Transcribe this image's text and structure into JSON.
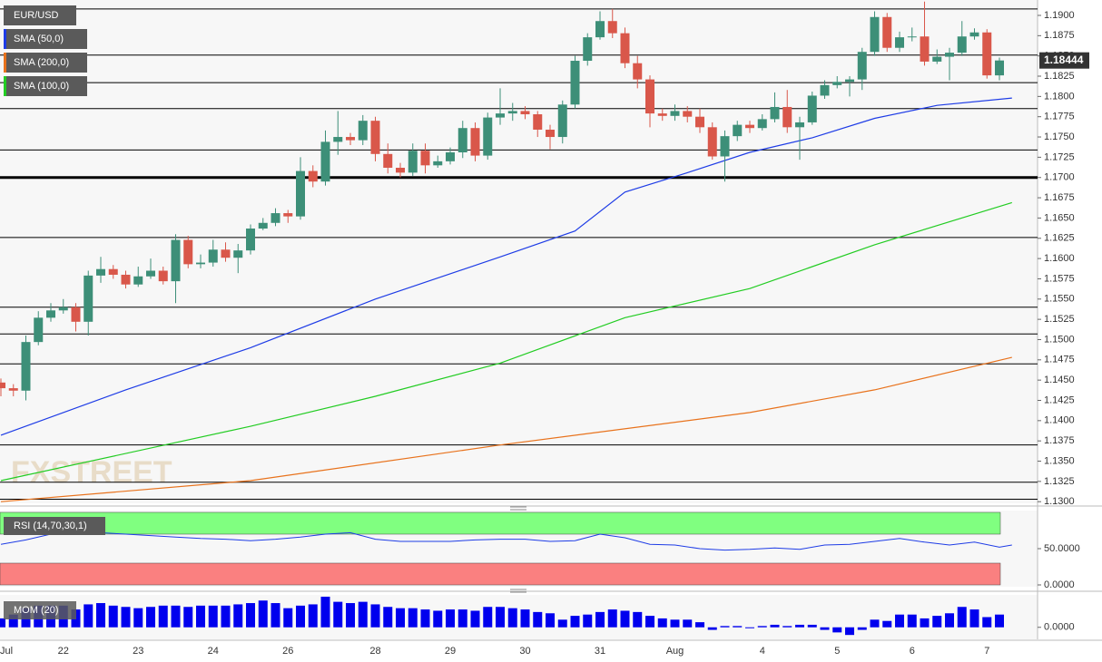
{
  "chart_data": {
    "type": "candlestick",
    "watermark": "FXSTREET",
    "categories": [
      "Jul",
      null,
      null,
      null,
      null,
      "22",
      null,
      null,
      null,
      null,
      null,
      "23",
      null,
      null,
      null,
      null,
      null,
      "24",
      null,
      null,
      null,
      null,
      null,
      "26",
      null,
      null,
      null,
      null,
      null,
      null,
      "28",
      null,
      null,
      null,
      null,
      null,
      "29",
      null,
      null,
      null,
      null,
      null,
      "30",
      null,
      null,
      null,
      null,
      null,
      "31",
      null,
      null,
      null,
      null,
      null,
      "Aug",
      null,
      null,
      null,
      null,
      null,
      null,
      "4",
      null,
      null,
      null,
      null,
      null,
      "5",
      null,
      null,
      null,
      null,
      null,
      "6",
      null,
      null,
      null,
      null,
      null,
      "7",
      null
    ],
    "ylim": [
      1.1298,
      1.1919
    ],
    "yticks": [
      {
        "value": 1.13,
        "label": "1.1300"
      },
      {
        "value": 1.1325,
        "label": "1.1325"
      },
      {
        "value": 1.135,
        "label": "1.1350"
      },
      {
        "value": 1.1375,
        "label": "1.1375"
      },
      {
        "value": 1.14,
        "label": "1.1400"
      },
      {
        "value": 1.1425,
        "label": "1.1425"
      },
      {
        "value": 1.145,
        "label": "1.1450"
      },
      {
        "value": 1.1475,
        "label": "1.1475"
      },
      {
        "value": 1.15,
        "label": "1.1500"
      },
      {
        "value": 1.1525,
        "label": "1.1525"
      },
      {
        "value": 1.155,
        "label": "1.1550"
      },
      {
        "value": 1.1575,
        "label": "1.1575"
      },
      {
        "value": 1.16,
        "label": "1.1600"
      },
      {
        "value": 1.1625,
        "label": "1.1625"
      },
      {
        "value": 1.165,
        "label": "1.1650"
      },
      {
        "value": 1.1675,
        "label": "1.1675"
      },
      {
        "value": 1.17,
        "label": "1.1700"
      },
      {
        "value": 1.1725,
        "label": "1.1725"
      },
      {
        "value": 1.175,
        "label": "1.1750"
      },
      {
        "value": 1.1775,
        "label": "1.1775"
      },
      {
        "value": 1.18,
        "label": "1.1800"
      },
      {
        "value": 1.1825,
        "label": "1.1825"
      },
      {
        "value": 1.185,
        "label": "1.1850"
      },
      {
        "value": 1.1875,
        "label": "1.1875"
      },
      {
        "value": 1.19,
        "label": "1.1900"
      }
    ],
    "levels": [
      1.1908,
      1.1851,
      1.1817,
      1.1785,
      1.1734,
      1.1626,
      1.154,
      1.1507,
      1.147,
      1.137,
      1.1324,
      1.1303
    ],
    "key_level": 1.17,
    "series": [
      {
        "name": "EUR/USD",
        "up_color": "#3d8f78",
        "down_color": "#d9574a",
        "open": [
          1.1447,
          1.144,
          1.1437,
          1.1497,
          1.1527,
          1.1536,
          1.154,
          1.1522,
          1.1579,
          1.1587,
          1.158,
          1.1568,
          1.1578,
          1.1585,
          1.1572,
          1.1623,
          1.1593,
          1.1595,
          1.1611,
          1.1601,
          1.161,
          1.1637,
          1.1644,
          1.1656,
          1.1652,
          1.1708,
          1.1695,
          1.1744,
          1.175,
          1.1746,
          1.177,
          1.1729,
          1.1712,
          1.1706,
          1.1733,
          1.1715,
          1.172,
          1.1731,
          1.1761,
          1.1727,
          1.1774,
          1.1779,
          1.1782,
          1.1778,
          1.1759,
          1.175,
          1.179,
          1.1844,
          1.1873,
          1.1893,
          1.1878,
          1.1841,
          1.1821,
          1.1779,
          1.1776,
          1.1782,
          1.1775,
          1.1762,
          1.1726,
          1.1751,
          1.1765,
          1.1761,
          1.1772,
          1.1787,
          1.1762,
          1.1768,
          1.1801,
          1.1814,
          1.1818,
          1.1821,
          1.1855,
          1.1898,
          1.186,
          1.1873,
          1.1874,
          1.1843,
          1.1849,
          1.1854,
          1.1874,
          1.1879,
          1.1826
        ],
        "high": [
          1.1452,
          1.1445,
          1.1505,
          1.1535,
          1.1545,
          1.155,
          1.1545,
          1.1585,
          1.1602,
          1.1592,
          1.1585,
          1.159,
          1.16,
          1.159,
          1.163,
          1.1628,
          1.1605,
          1.1623,
          1.162,
          1.1618,
          1.1642,
          1.165,
          1.1662,
          1.166,
          1.1725,
          1.1715,
          1.1758,
          1.1782,
          1.1755,
          1.1777,
          1.1775,
          1.1742,
          1.1718,
          1.1742,
          1.1742,
          1.1727,
          1.1737,
          1.177,
          1.1768,
          1.178,
          1.181,
          1.1792,
          1.1788,
          1.1782,
          1.1765,
          1.1795,
          1.185,
          1.1878,
          1.1905,
          1.1908,
          1.1885,
          1.185,
          1.1826,
          1.1785,
          1.179,
          1.1788,
          1.1785,
          1.1768,
          1.1758,
          1.177,
          1.177,
          1.1778,
          1.1805,
          1.1808,
          1.1775,
          1.1806,
          1.182,
          1.1825,
          1.1825,
          1.186,
          1.1905,
          1.1903,
          1.188,
          1.1885,
          1.1917,
          1.1858,
          1.186,
          1.1893,
          1.1884,
          1.1883,
          1.1848
        ],
        "low": [
          1.143,
          1.143,
          1.1425,
          1.1493,
          1.1522,
          1.1532,
          1.151,
          1.1505,
          1.157,
          1.1575,
          1.1563,
          1.1565,
          1.1575,
          1.1568,
          1.1545,
          1.1588,
          1.1588,
          1.159,
          1.1596,
          1.1582,
          1.1605,
          1.1635,
          1.164,
          1.1644,
          1.1648,
          1.1688,
          1.169,
          1.1728,
          1.174,
          1.174,
          1.172,
          1.1705,
          1.17,
          1.1702,
          1.1705,
          1.1712,
          1.1716,
          1.1724,
          1.172,
          1.1722,
          1.1765,
          1.177,
          1.1772,
          1.175,
          1.1735,
          1.1742,
          1.1785,
          1.1838,
          1.187,
          1.1872,
          1.1835,
          1.181,
          1.1762,
          1.177,
          1.177,
          1.1768,
          1.1755,
          1.1722,
          1.1695,
          1.1745,
          1.1755,
          1.1758,
          1.1768,
          1.1755,
          1.1722,
          1.1765,
          1.1797,
          1.181,
          1.18,
          1.1808,
          1.185,
          1.1855,
          1.1855,
          1.1868,
          1.1838,
          1.184,
          1.182,
          1.185,
          1.187,
          1.1822,
          1.182
        ],
        "close": [
          1.144,
          1.1437,
          1.1497,
          1.1527,
          1.1536,
          1.154,
          1.1522,
          1.1579,
          1.1587,
          1.158,
          1.1568,
          1.1578,
          1.1585,
          1.1572,
          1.1623,
          1.1593,
          1.1595,
          1.1611,
          1.1601,
          1.161,
          1.1637,
          1.1644,
          1.1656,
          1.1652,
          1.1708,
          1.1695,
          1.1744,
          1.175,
          1.1746,
          1.177,
          1.1729,
          1.1712,
          1.1706,
          1.1733,
          1.1715,
          1.172,
          1.1731,
          1.1761,
          1.1727,
          1.1774,
          1.1779,
          1.1782,
          1.1778,
          1.1759,
          1.175,
          1.179,
          1.1844,
          1.1873,
          1.1893,
          1.1878,
          1.1841,
          1.1821,
          1.1779,
          1.1776,
          1.1782,
          1.1775,
          1.1762,
          1.1726,
          1.1751,
          1.1765,
          1.1761,
          1.1772,
          1.1787,
          1.1762,
          1.1768,
          1.1801,
          1.1814,
          1.1818,
          1.1821,
          1.1855,
          1.1898,
          1.186,
          1.1873,
          1.1874,
          1.1843,
          1.1849,
          1.1854,
          1.1874,
          1.1879,
          1.1826,
          1.18444
        ]
      }
    ],
    "overlays": [
      {
        "name": "SMA (50,0)",
        "color": "#1e3ce6",
        "x": [
          0,
          10,
          20,
          30,
          40,
          46,
          50,
          55,
          60,
          65,
          70,
          75,
          81
        ],
        "values": [
          1.1382,
          1.1438,
          1.149,
          1.155,
          1.1602,
          1.1634,
          1.1682,
          1.1706,
          1.1731,
          1.1749,
          1.1773,
          1.1789,
          1.1798
        ]
      },
      {
        "name": "SMA (200,0)",
        "color": "#e8721c",
        "x": [
          0,
          20,
          40,
          60,
          70,
          81
        ],
        "values": [
          1.13,
          1.1326,
          1.137,
          1.141,
          1.1438,
          1.1478
        ]
      },
      {
        "name": "SMA (100,0)",
        "color": "#22cc22",
        "x": [
          0,
          20,
          30,
          40,
          50,
          60,
          70,
          81
        ],
        "values": [
          1.1326,
          1.1393,
          1.143,
          1.1471,
          1.1527,
          1.1563,
          1.1617,
          1.1669
        ]
      }
    ],
    "rsi": {
      "name": "RSI (14,70,30,1)",
      "color": "#1e3ce6",
      "upper": 70,
      "lower": 30,
      "upper_color": "#80ff80",
      "lower_color": "#fa8080",
      "ylim": [
        0,
        100
      ],
      "yticks": [
        {
          "value": 50,
          "label": "50.0000"
        },
        {
          "value": 0,
          "label": "0.0000"
        }
      ],
      "x": [
        0,
        2,
        4,
        6,
        8,
        10,
        12,
        14,
        16,
        18,
        20,
        22,
        24,
        26,
        28,
        30,
        32,
        34,
        36,
        38,
        40,
        42,
        44,
        46,
        48,
        50,
        52,
        54,
        56,
        58,
        60,
        62,
        64,
        66,
        68,
        70,
        72,
        74,
        76,
        78,
        80,
        81
      ],
      "values": [
        56,
        62,
        70,
        73,
        72,
        70,
        68,
        66,
        64,
        63,
        61,
        63,
        66,
        70,
        72,
        63,
        60,
        60,
        60,
        62,
        63,
        63,
        60,
        61,
        70,
        65,
        56,
        55,
        50,
        48,
        49,
        51,
        49,
        55,
        56,
        60,
        64,
        59,
        55,
        59,
        52,
        55
      ]
    },
    "momentum": {
      "name": "MOM (20)",
      "color": "#0000ee",
      "ylim": [
        -0.004,
        0.012
      ],
      "yticks": [
        {
          "value": 0,
          "label": "0.0000"
        }
      ],
      "values": [
        0.0035,
        0.005,
        0.0075,
        0.0085,
        0.0085,
        0.0085,
        0.007,
        0.009,
        0.0095,
        0.0085,
        0.008,
        0.0075,
        0.008,
        0.0085,
        0.0085,
        0.008,
        0.0085,
        0.0085,
        0.0085,
        0.009,
        0.0095,
        0.0105,
        0.0095,
        0.0075,
        0.0085,
        0.009,
        0.012,
        0.01,
        0.0095,
        0.01,
        0.009,
        0.008,
        0.0075,
        0.0075,
        0.007,
        0.0065,
        0.007,
        0.007,
        0.0065,
        0.008,
        0.008,
        0.0075,
        0.007,
        0.006,
        0.0055,
        0.003,
        0.0045,
        0.005,
        0.006,
        0.007,
        0.0065,
        0.006,
        0.0045,
        0.0035,
        0.003,
        0.003,
        0.002,
        -0.001,
        0.0005,
        0.0005,
        0,
        0.0005,
        0.001,
        0.0005,
        0.001,
        0.001,
        -0.001,
        -0.002,
        -0.003,
        -0.001,
        0.003,
        0.0025,
        0.005,
        0.005,
        0.0035,
        0.0045,
        0.0055,
        0.008,
        0.007,
        0.004,
        0.005
      ]
    }
  }
}
